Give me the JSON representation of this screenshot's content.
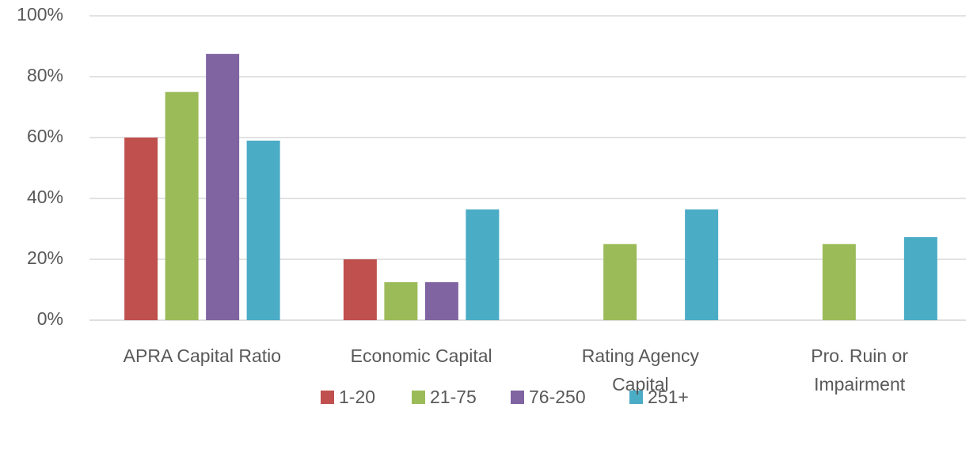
{
  "chart_data": {
    "type": "bar",
    "categories": [
      "APRA Capital Ratio",
      "Economic Capital",
      "Rating Agency\nCapital",
      "Pro. Ruin or\nImpairment"
    ],
    "series": [
      {
        "name": "1-20",
        "color": "#c0504d",
        "values": [
          60,
          20,
          0,
          0
        ]
      },
      {
        "name": "21-75",
        "color": "#9bbb59",
        "values": [
          75,
          12.5,
          25,
          25
        ]
      },
      {
        "name": "76-250",
        "color": "#8064a2",
        "values": [
          87.5,
          12.5,
          0,
          0
        ]
      },
      {
        "name": "251+",
        "color": "#4bacc6",
        "values": [
          59,
          36.4,
          36.4,
          27.3
        ]
      }
    ],
    "ylim": [
      0,
      100
    ],
    "yticks": [
      {
        "value": 0,
        "label": "0%"
      },
      {
        "value": 20,
        "label": "20%"
      },
      {
        "value": 40,
        "label": "40%"
      },
      {
        "value": 60,
        "label": "60%"
      },
      {
        "value": 80,
        "label": "80%"
      },
      {
        "value": 100,
        "label": "100%"
      }
    ],
    "grid": true,
    "legend": "bottom"
  }
}
